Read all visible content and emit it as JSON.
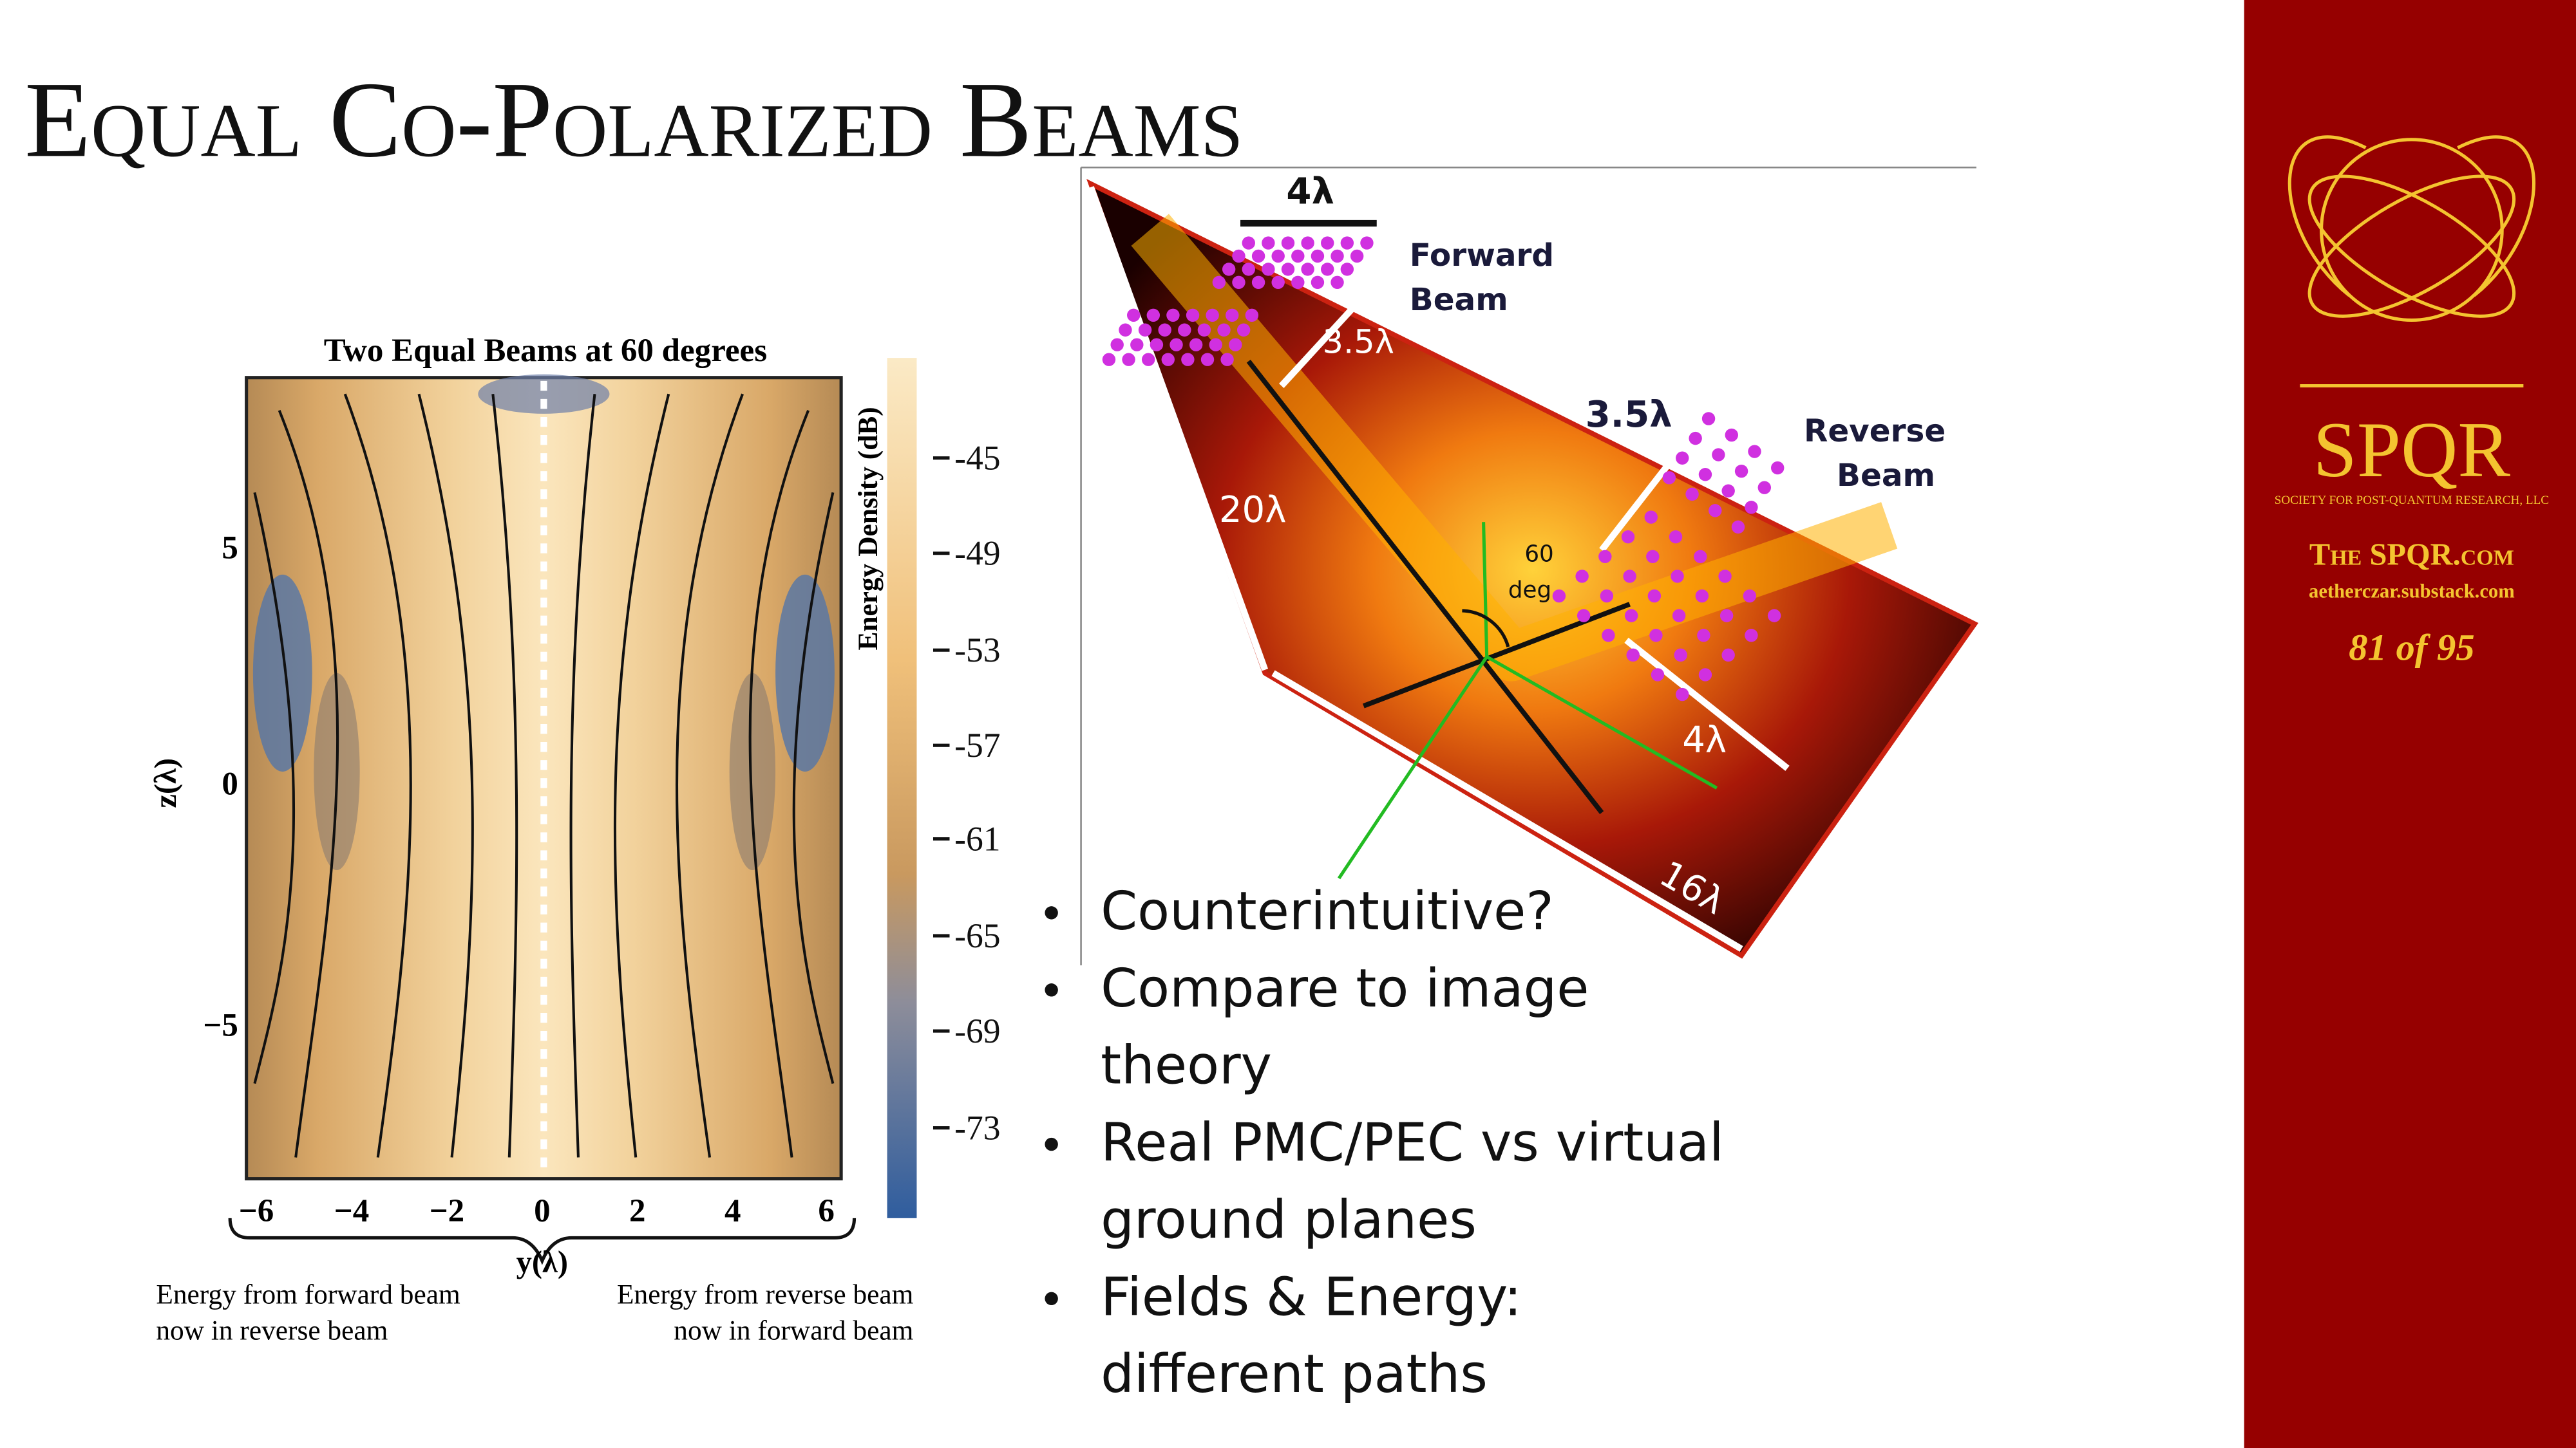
{
  "title": "Equal Co-Polarized Beams",
  "plot": {
    "title": "Two Equal Beams at 60 degrees",
    "colorbar_label": "Energy Density (dB)",
    "colorbar_ticks": [
      "-45",
      "-49",
      "-53",
      "-57",
      "-61",
      "-65",
      "-69",
      "-73"
    ],
    "x_ticks": [
      "−6",
      "−4",
      "−2",
      "0",
      "2",
      "4",
      "6"
    ],
    "y_ticks": [
      "5",
      "0",
      "−5"
    ],
    "x_label": "y(λ)",
    "y_label": "z(λ)",
    "captions": {
      "left": [
        "Energy from forward beam",
        "now in reverse beam"
      ],
      "right": [
        "Energy from reverse beam",
        "now in forward beam"
      ]
    }
  },
  "diagram": {
    "labels": [
      "4λ",
      "Forward",
      "Beam",
      "3.5λ",
      "3.5λ",
      "Reverse",
      "Beam",
      "20λ",
      "60",
      "deg",
      "4λ",
      "16λ"
    ]
  },
  "bullets": [
    [
      "Counterintuitive?"
    ],
    [
      "Compare to image",
      "theory"
    ],
    [
      "Real PMC/PEC vs virtual",
      "ground planes"
    ],
    [
      "Fields & Energy:",
      "different paths"
    ]
  ],
  "sidebar": {
    "logo": "SPQR",
    "society": "SOCIETY FOR POST-QUANTUM RESEARCH, LLC",
    "site": "The SPQR.com",
    "substack": "aetherczar.substack.com",
    "page": "81 of 95"
  }
}
